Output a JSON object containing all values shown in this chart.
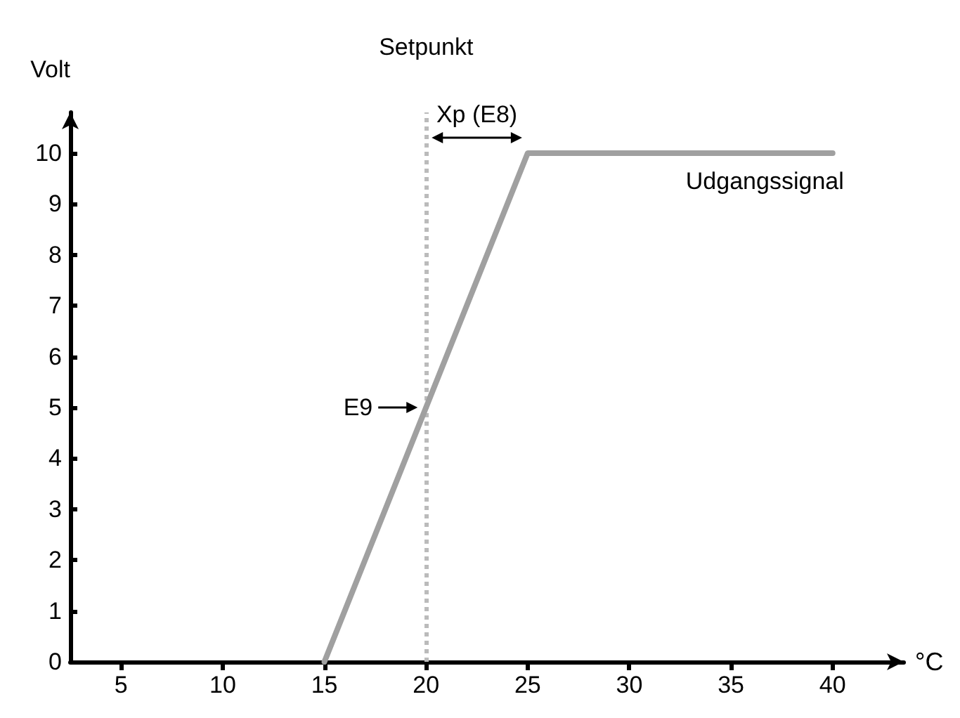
{
  "chart_data": {
    "type": "line",
    "xlabel": "°C",
    "ylabel": "Volt",
    "xlim": [
      2.5,
      43.5
    ],
    "xticks": [
      5,
      10,
      15,
      20,
      25,
      30,
      35,
      40
    ],
    "ylim": [
      0,
      10.8
    ],
    "yticks": [
      0,
      1,
      2,
      3,
      4,
      5,
      6,
      7,
      8,
      9,
      10
    ],
    "series": [
      {
        "name": "Udgangssignal",
        "color": "#a0a0a0",
        "x": [
          15,
          25,
          40
        ],
        "values": [
          0,
          10,
          10
        ]
      }
    ],
    "ref_lines": [
      {
        "axis": "x",
        "value": 20,
        "label": "Setpunkt",
        "color": "#bbbbbb",
        "line_style": "dotted"
      }
    ],
    "annotations": [
      "Xp (E8)",
      {
        "text": "E9",
        "x": 20,
        "y": 5
      }
    ],
    "grid": false,
    "legend": false,
    "marker": "none",
    "line_style": "solid"
  }
}
